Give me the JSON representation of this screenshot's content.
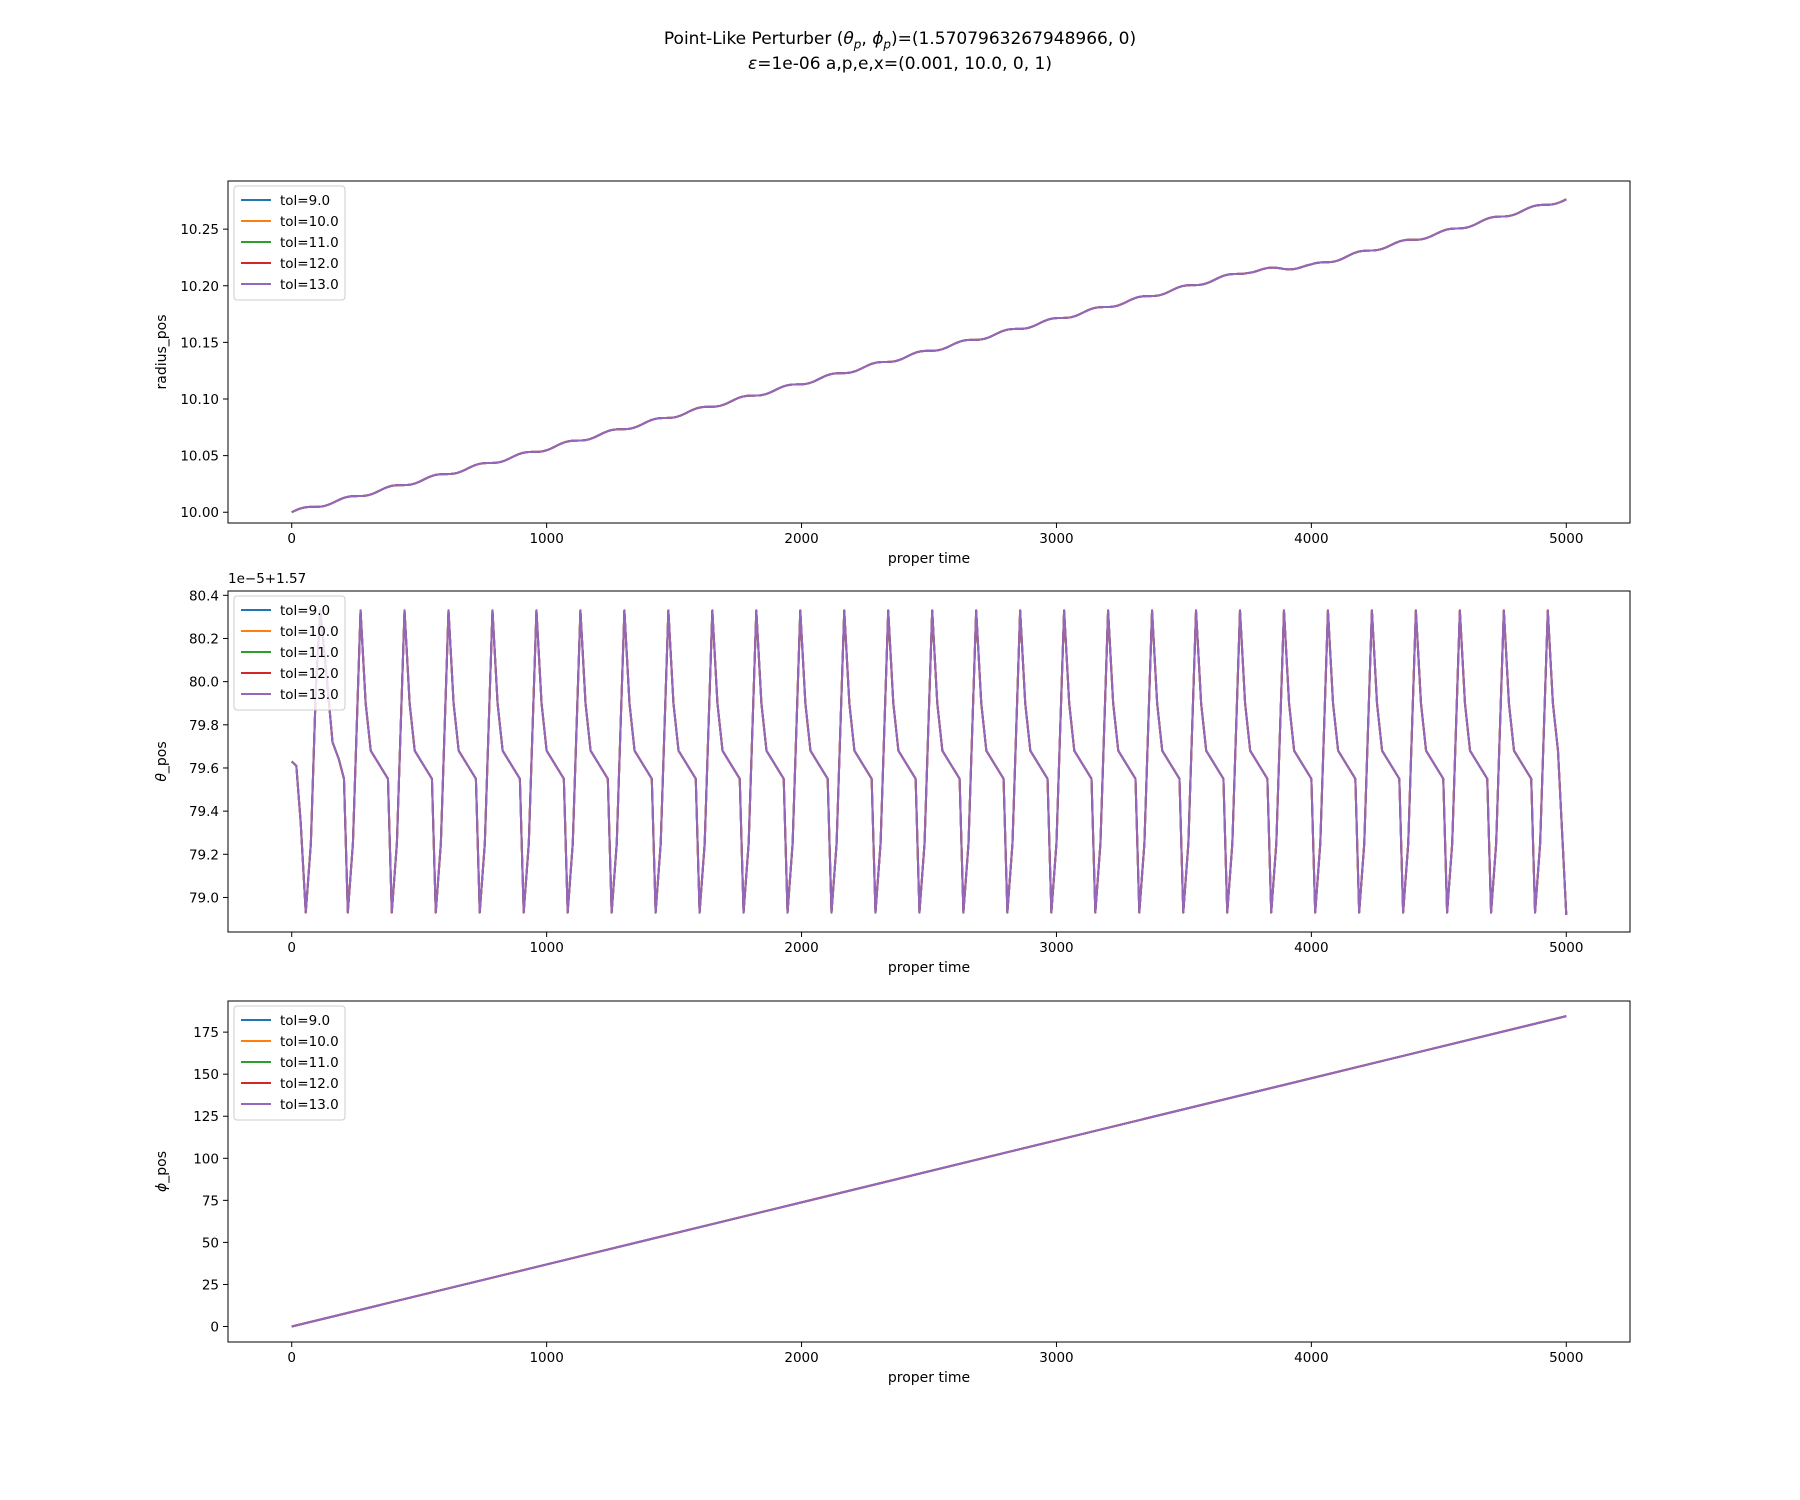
{
  "title": {
    "line1_prefix": "Point-Like Perturber (",
    "line1_theta": "θ",
    "line1_theta_sub": "p",
    "line1_sep": ", ",
    "line1_phi": "ϕ",
    "line1_phi_sub": "p",
    "line1_suffix": ")=(1.5707963267948966, 0)",
    "line2_eps": "ε",
    "line2_rest": "=1e-06 a,p,e,x=(0.001, 10.0, 0, 1)"
  },
  "colors": {
    "series": [
      "#1f77b4",
      "#ff7f0e",
      "#2ca02c",
      "#d62728",
      "#9467bd"
    ],
    "axes": "#000000",
    "legend_border": "#cccccc"
  },
  "chart_data": [
    {
      "type": "line",
      "xlabel": "proper time",
      "ylabel": "radius_pos",
      "offset_text": "",
      "xlim": [
        -250,
        5250
      ],
      "ylim": [
        9.9905,
        10.2925
      ],
      "xticks": [
        0,
        1000,
        2000,
        3000,
        4000,
        5000
      ],
      "yticks": [
        10.0,
        10.05,
        10.1,
        10.15,
        10.2,
        10.25
      ],
      "ytick_labels": [
        "10.00",
        "10.05",
        "10.10",
        "10.15",
        "10.20",
        "10.25"
      ],
      "grid": false,
      "legend_loc": "upper left",
      "x": [
        0,
        250,
        500,
        750,
        1000,
        1250,
        1500,
        1750,
        2000,
        2250,
        2500,
        2750,
        3000,
        3250,
        3500,
        3750,
        4000,
        4250,
        4500,
        4750,
        5000
      ],
      "series": [
        {
          "name": "tol=9.0",
          "values": [
            10.0,
            10.0138,
            10.0278,
            10.042,
            10.0562,
            10.0708,
            10.0852,
            10.0995,
            10.1138,
            10.1282,
            10.1425,
            10.1565,
            10.1705,
            10.1845,
            10.1985,
            10.2128,
            10.2175,
            10.2325,
            10.2462,
            10.2615,
            10.2765
          ]
        },
        {
          "name": "tol=10.0",
          "values": [
            10.0,
            10.0138,
            10.0278,
            10.042,
            10.0562,
            10.0708,
            10.0852,
            10.0995,
            10.1138,
            10.1282,
            10.1425,
            10.1565,
            10.1705,
            10.1845,
            10.1985,
            10.2128,
            10.2175,
            10.2325,
            10.2462,
            10.2615,
            10.2765
          ]
        },
        {
          "name": "tol=11.0",
          "values": [
            10.0,
            10.0138,
            10.0278,
            10.042,
            10.0562,
            10.0708,
            10.0852,
            10.0995,
            10.1138,
            10.1282,
            10.1425,
            10.1565,
            10.1705,
            10.1845,
            10.1985,
            10.2128,
            10.2175,
            10.2325,
            10.2462,
            10.2615,
            10.2765
          ]
        },
        {
          "name": "tol=12.0",
          "values": [
            10.0,
            10.0138,
            10.0278,
            10.042,
            10.0562,
            10.0708,
            10.0852,
            10.0995,
            10.1138,
            10.1282,
            10.1425,
            10.1565,
            10.1705,
            10.1845,
            10.1985,
            10.2128,
            10.2175,
            10.2325,
            10.2462,
            10.2615,
            10.2765
          ]
        },
        {
          "name": "tol=13.0",
          "values": [
            10.0,
            10.0138,
            10.0278,
            10.042,
            10.0562,
            10.0708,
            10.0852,
            10.0995,
            10.1138,
            10.1282,
            10.1425,
            10.1565,
            10.1705,
            10.1845,
            10.1985,
            10.2128,
            10.2175,
            10.2325,
            10.2462,
            10.2615,
            10.2765
          ]
        }
      ]
    },
    {
      "type": "line",
      "xlabel": "proper time",
      "ylabel": "θ_pos",
      "offset_text": "1e−5+1.57",
      "xlim": [
        -250,
        5250
      ],
      "ylim": [
        78.84,
        80.42
      ],
      "xticks": [
        0,
        1000,
        2000,
        3000,
        4000,
        5000
      ],
      "yticks": [
        79.0,
        79.2,
        79.4,
        79.6,
        79.8,
        80.0,
        80.2,
        80.4
      ],
      "ytick_labels": [
        "79.0",
        "79.2",
        "79.4",
        "79.6",
        "79.8",
        "80.0",
        "80.2",
        "80.4"
      ],
      "grid": false,
      "legend_loc": "upper left",
      "x": [
        0,
        18,
        35,
        55,
        75,
        95,
        112,
        135,
        160,
        185,
        205,
        220,
        240,
        270,
        290,
        310
      ],
      "series": [
        {
          "name": "tol=9.0",
          "values": [
            79.63,
            79.61,
            79.35,
            78.93,
            79.25,
            79.98,
            80.33,
            80.05,
            79.72,
            79.64,
            79.55,
            78.93,
            79.25,
            80.33,
            79.9,
            79.68
          ]
        },
        {
          "name": "tol=10.0",
          "values": [
            79.63,
            79.61,
            79.35,
            78.93,
            79.25,
            79.98,
            80.33,
            80.05,
            79.72,
            79.64,
            79.55,
            78.93,
            79.25,
            80.33,
            79.9,
            79.68
          ]
        },
        {
          "name": "tol=11.0",
          "values": [
            79.63,
            79.61,
            79.35,
            78.93,
            79.25,
            79.98,
            80.33,
            80.05,
            79.72,
            79.64,
            79.55,
            78.93,
            79.25,
            80.33,
            79.9,
            79.68
          ]
        },
        {
          "name": "tol=12.0",
          "values": [
            79.63,
            79.61,
            79.35,
            78.93,
            79.25,
            79.98,
            80.33,
            80.05,
            79.72,
            79.64,
            79.55,
            78.93,
            79.25,
            80.33,
            79.9,
            79.68
          ]
        },
        {
          "name": "tol=13.0",
          "values": [
            79.63,
            79.61,
            79.35,
            78.93,
            79.25,
            79.98,
            80.33,
            80.05,
            79.72,
            79.64,
            79.55,
            78.93,
            79.25,
            80.33,
            79.9,
            79.68
          ]
        }
      ]
    },
    {
      "type": "line",
      "xlabel": "proper time",
      "ylabel": "ϕ_pos",
      "offset_text": "",
      "xlim": [
        -250,
        5250
      ],
      "ylim": [
        -9.2,
        193.5
      ],
      "xticks": [
        0,
        1000,
        2000,
        3000,
        4000,
        5000
      ],
      "yticks": [
        0,
        25,
        50,
        75,
        100,
        125,
        150,
        175
      ],
      "ytick_labels": [
        "0",
        "25",
        "50",
        "75",
        "100",
        "125",
        "150",
        "175"
      ],
      "grid": false,
      "legend_loc": "upper left",
      "x": [
        0,
        1000,
        2000,
        3000,
        4000,
        5000
      ],
      "series": [
        {
          "name": "tol=9.0",
          "values": [
            0,
            36.9,
            73.8,
            110.7,
            147.6,
            184.5
          ]
        },
        {
          "name": "tol=10.0",
          "values": [
            0,
            36.9,
            73.8,
            110.7,
            147.6,
            184.5
          ]
        },
        {
          "name": "tol=11.0",
          "values": [
            0,
            36.9,
            73.8,
            110.7,
            147.6,
            184.5
          ]
        },
        {
          "name": "tol=12.0",
          "values": [
            0,
            36.9,
            73.8,
            110.7,
            147.6,
            184.5
          ]
        },
        {
          "name": "tol=13.0",
          "values": [
            0,
            36.9,
            73.8,
            110.7,
            147.6,
            184.5
          ]
        }
      ]
    }
  ]
}
